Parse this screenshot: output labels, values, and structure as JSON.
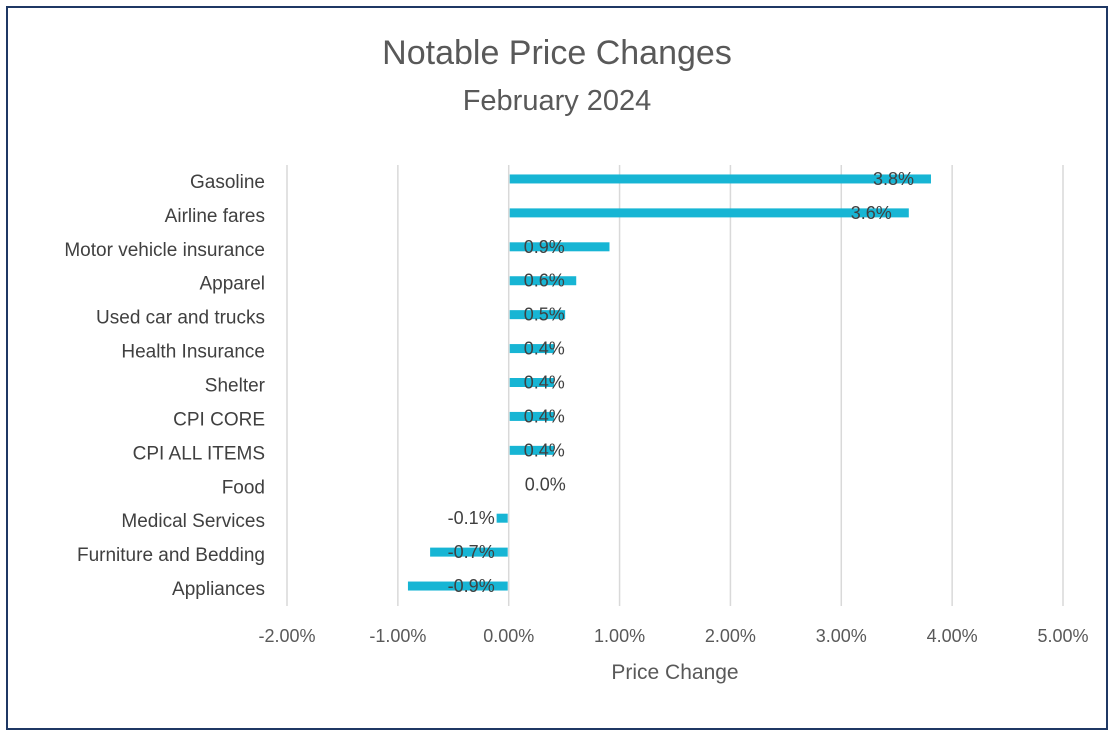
{
  "chart_data": {
    "type": "bar",
    "orientation": "horizontal",
    "title": "Notable Price Changes",
    "subtitle": "February 2024",
    "xlabel": "Price Change",
    "ylabel": "",
    "categories": [
      "Gasoline",
      "Airline fares",
      "Motor vehicle insurance",
      "Apparel",
      "Used car and trucks",
      "Health Insurance",
      "Shelter",
      "CPI CORE",
      "CPI ALL ITEMS",
      "Food",
      "Medical Services",
      "Furniture and Bedding",
      "Appliances"
    ],
    "values": [
      3.8,
      3.6,
      0.9,
      0.6,
      0.5,
      0.4,
      0.4,
      0.4,
      0.4,
      0.0,
      -0.1,
      -0.7,
      -0.9
    ],
    "data_labels": [
      "3.8%",
      "3.6%",
      "0.9%",
      "0.6%",
      "0.5%",
      "0.4%",
      "0.4%",
      "0.4%",
      "0.4%",
      "0.0%",
      "-0.1%",
      "-0.7%",
      "-0.9%"
    ],
    "xlim": [
      -2,
      5
    ],
    "xticks": [
      -2,
      -1,
      0,
      1,
      2,
      3,
      4,
      5
    ],
    "xtick_labels": [
      "-2.00%",
      "-1.00%",
      "0.00%",
      "1.00%",
      "2.00%",
      "3.00%",
      "4.00%",
      "5.00%"
    ],
    "grid": "vertical",
    "legend": "none",
    "bar_color": "#17b5d4",
    "grid_color": "#d9d9d9",
    "frame_color": "#1f3864"
  }
}
